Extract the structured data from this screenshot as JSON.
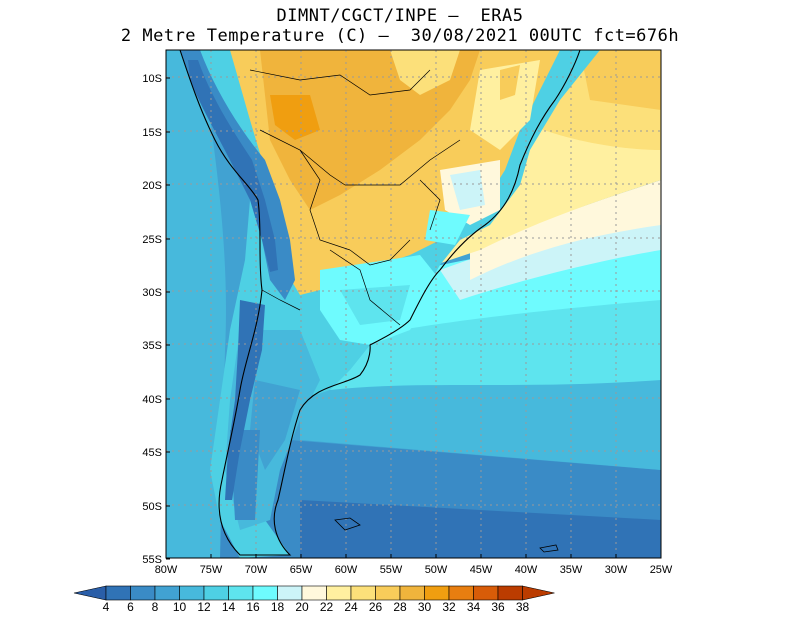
{
  "header": {
    "line1": "DIMNT/CGCT/INPE –  ERA5",
    "line2": "2 Metre Temperature (C) –  30/08/2021 00UTC fct=676h"
  },
  "map": {
    "lat_labels": [
      "10S",
      "15S",
      "20S",
      "25S",
      "30S",
      "35S",
      "40S",
      "45S",
      "50S",
      "55S"
    ],
    "lon_labels": [
      "80W",
      "75W",
      "70W",
      "65W",
      "60W",
      "55W",
      "50W",
      "45W",
      "40W",
      "35W",
      "30W",
      "25W"
    ],
    "lat_range": [
      -55,
      -7.5
    ],
    "lon_range": [
      -80,
      -25
    ]
  },
  "colorbar": {
    "labels": [
      "4",
      "6",
      "8",
      "10",
      "12",
      "14",
      "16",
      "18",
      "20",
      "22",
      "24",
      "26",
      "28",
      "30",
      "32",
      "34",
      "36",
      "38"
    ],
    "colors": [
      "#2a5ea8",
      "#3073b6",
      "#3a8bc6",
      "#41a2d2",
      "#47b9dc",
      "#4ed0e4",
      "#5ee4ee",
      "#6efbfe",
      "#ccf4f8",
      "#fff8dc",
      "#fff0a0",
      "#fce07a",
      "#f8cc5a",
      "#f0b43c",
      "#f09e10",
      "#e87e10",
      "#d85c08",
      "#bb3c00"
    ]
  }
}
